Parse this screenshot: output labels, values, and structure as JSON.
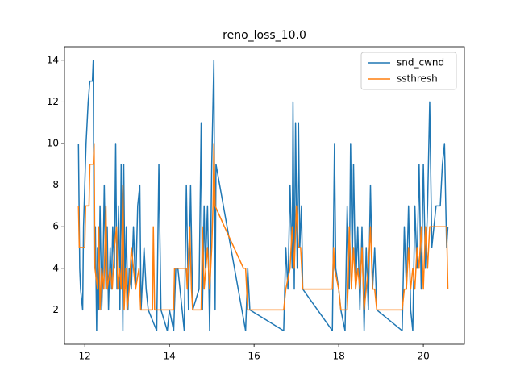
{
  "chart_data": {
    "type": "line",
    "title": "reno_loss_10.0",
    "xlim": [
      11.52,
      20.97
    ],
    "ylim": [
      0.35,
      14.65
    ],
    "xticks": [
      12,
      14,
      16,
      18,
      20
    ],
    "yticks": [
      2,
      4,
      6,
      8,
      10,
      12,
      14
    ],
    "legend": "upper right",
    "series": [
      {
        "name": "snd_cwnd",
        "color": "#1f77b4",
        "x": [
          11.85,
          11.88,
          11.9,
          11.95,
          11.97,
          12.0,
          12.03,
          12.08,
          12.12,
          12.18,
          12.2,
          12.22,
          12.25,
          12.28,
          12.3,
          12.33,
          12.36,
          12.4,
          12.43,
          12.46,
          12.5,
          12.53,
          12.56,
          12.6,
          12.63,
          12.66,
          12.7,
          12.73,
          12.76,
          12.8,
          12.83,
          12.86,
          12.9,
          12.92,
          12.95,
          12.98,
          13.02,
          13.05,
          13.1,
          13.15,
          13.2,
          13.25,
          13.3,
          13.33,
          13.4,
          13.45,
          13.5,
          13.7,
          13.75,
          13.8,
          13.95,
          14.0,
          14.1,
          14.15,
          14.2,
          14.35,
          14.4,
          14.45,
          14.5,
          14.55,
          14.7,
          14.75,
          14.78,
          14.82,
          14.85,
          14.9,
          14.95,
          15.0,
          15.05,
          15.08,
          15.1,
          15.8,
          15.85,
          15.9,
          16.7,
          16.75,
          16.8,
          16.85,
          16.9,
          16.92,
          16.95,
          16.98,
          17.02,
          17.05,
          17.08,
          17.12,
          17.15,
          17.85,
          17.9,
          17.93,
          18.0,
          18.05,
          18.15,
          18.2,
          18.25,
          18.28,
          18.32,
          18.35,
          18.4,
          18.45,
          18.5,
          18.55,
          18.6,
          18.65,
          18.7,
          18.75,
          18.8,
          18.85,
          18.9,
          19.5,
          19.55,
          19.6,
          19.65,
          19.7,
          19.75,
          19.8,
          19.85,
          19.9,
          19.95,
          20.0,
          20.05,
          20.1,
          20.15,
          20.2,
          20.3,
          20.4,
          20.45,
          20.5,
          20.55,
          20.58
        ],
        "values": [
          10,
          4,
          3,
          2,
          6,
          8,
          10,
          12,
          13,
          13,
          14,
          4,
          6,
          1,
          5,
          2,
          7,
          2,
          4,
          8,
          3,
          6,
          2,
          5,
          3,
          6,
          4,
          10,
          3,
          7,
          2,
          9,
          1,
          9,
          3,
          6,
          2,
          4,
          3,
          6,
          3,
          7,
          8,
          2,
          5,
          3,
          2,
          1,
          9,
          2,
          1,
          2,
          1,
          4,
          4,
          1,
          8,
          2,
          8,
          2,
          3,
          11,
          2,
          7,
          4,
          7,
          1,
          9,
          14,
          2,
          9,
          1,
          4,
          2,
          1,
          5,
          3,
          8,
          4,
          12,
          3,
          11,
          4,
          11,
          5,
          7,
          3,
          1,
          10,
          4,
          3,
          2,
          1,
          7,
          3,
          10,
          4,
          9,
          3,
          6,
          2,
          6,
          1,
          5,
          2,
          8,
          3,
          5,
          2,
          1,
          6,
          3,
          7,
          2,
          1,
          7,
          4,
          9,
          3,
          9,
          4,
          7,
          12,
          5,
          7,
          7,
          9,
          10,
          5,
          6
        ]
      },
      {
        "name": "ssthresh",
        "color": "#ff7f0e",
        "x": [
          11.85,
          11.87,
          12.0,
          12.02,
          12.1,
          12.12,
          12.2,
          12.22,
          12.24,
          12.3,
          12.33,
          12.36,
          12.4,
          12.45,
          12.5,
          12.53,
          12.6,
          12.65,
          12.7,
          12.75,
          12.78,
          12.82,
          12.86,
          12.9,
          12.93,
          12.97,
          13.0,
          13.05,
          13.1,
          13.2,
          13.28,
          13.32,
          13.6,
          13.62,
          13.65,
          14.1,
          14.12,
          14.4,
          14.42,
          14.48,
          14.52,
          14.55,
          14.75,
          14.78,
          14.82,
          14.9,
          14.95,
          15.0,
          15.03,
          15.05,
          15.08,
          15.3,
          15.75,
          15.8,
          15.85,
          16.7,
          16.75,
          16.85,
          16.9,
          16.95,
          17.0,
          17.05,
          17.1,
          17.15,
          17.85,
          17.88,
          17.9,
          18.0,
          18.05,
          18.2,
          18.22,
          18.25,
          18.3,
          18.35,
          18.4,
          18.45,
          18.5,
          18.55,
          18.6,
          18.65,
          18.7,
          18.75,
          18.8,
          18.85,
          18.9,
          19.5,
          19.55,
          19.6,
          19.65,
          19.7,
          19.75,
          19.8,
          19.85,
          19.9,
          19.95,
          20.0,
          20.05,
          20.1,
          20.15,
          20.5,
          20.55,
          20.58
        ],
        "values": [
          7,
          5,
          5,
          7,
          7,
          9,
          9,
          10,
          4,
          3,
          6,
          2,
          4,
          3,
          7,
          3,
          4,
          3,
          5,
          6,
          3,
          4,
          3,
          8,
          2,
          4,
          2,
          3,
          5,
          3,
          4,
          2,
          2,
          6,
          2,
          2,
          4,
          4,
          3,
          6,
          3,
          2,
          2,
          6,
          3,
          5,
          3,
          5,
          7,
          10,
          7,
          6,
          4,
          4,
          2,
          2,
          3,
          4,
          6,
          4,
          7,
          5,
          5,
          3,
          3,
          5,
          4,
          3,
          2,
          2,
          3,
          6,
          3,
          5,
          3,
          4,
          3,
          5,
          2,
          3,
          4,
          6,
          3,
          3,
          2,
          2,
          3,
          3,
          5,
          3,
          4,
          3,
          5,
          4,
          6,
          3,
          6,
          4,
          6,
          6,
          6,
          3
        ]
      }
    ]
  }
}
